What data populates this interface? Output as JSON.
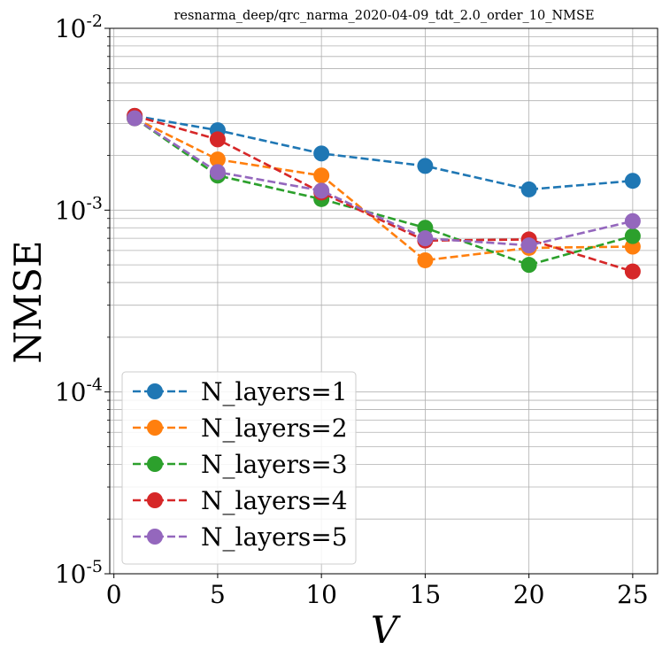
{
  "chart_data": {
    "type": "line",
    "title": "resnarma_deep/qrc_narma_2020-04-09_tdt_2.0_order_10_NMSE",
    "xlabel": "V",
    "ylabel": "NMSE",
    "yscale": "log",
    "xlim": [
      -0.2,
      26.2
    ],
    "ylim": [
      1e-05,
      0.01
    ],
    "xticks": [
      0,
      5,
      10,
      15,
      20,
      25
    ],
    "xtick_labels": [
      "0",
      "5",
      "10",
      "15",
      "20",
      "25"
    ],
    "yticks": [
      1e-05,
      0.0001,
      0.001,
      0.01
    ],
    "ytick_labels": [
      {
        "base": "10",
        "exp": "-5"
      },
      {
        "base": "10",
        "exp": "-4"
      },
      {
        "base": "10",
        "exp": "-3"
      },
      {
        "base": "10",
        "exp": "-2"
      }
    ],
    "grid": true,
    "legend_position": "lower-left",
    "x": [
      1,
      5,
      10,
      15,
      20,
      25
    ],
    "series": [
      {
        "name": "N_layers=1",
        "color": "#1f77b4",
        "values": [
          0.0033,
          0.00275,
          0.00205,
          0.00175,
          0.0013,
          0.00145
        ]
      },
      {
        "name": "N_layers=2",
        "color": "#ff7f0e",
        "values": [
          0.0032,
          0.0019,
          0.00155,
          0.00053,
          0.00062,
          0.00063
        ]
      },
      {
        "name": "N_layers=3",
        "color": "#2ca02c",
        "values": [
          0.0032,
          0.00155,
          0.00115,
          0.0008,
          0.0005,
          0.00072
        ]
      },
      {
        "name": "N_layers=4",
        "color": "#d62728",
        "values": [
          0.0033,
          0.00245,
          0.00125,
          0.00068,
          0.00069,
          0.00046
        ]
      },
      {
        "name": "N_layers=5",
        "color": "#9467bd",
        "values": [
          0.0032,
          0.00162,
          0.00128,
          0.0007,
          0.00064,
          0.00087
        ]
      }
    ]
  }
}
